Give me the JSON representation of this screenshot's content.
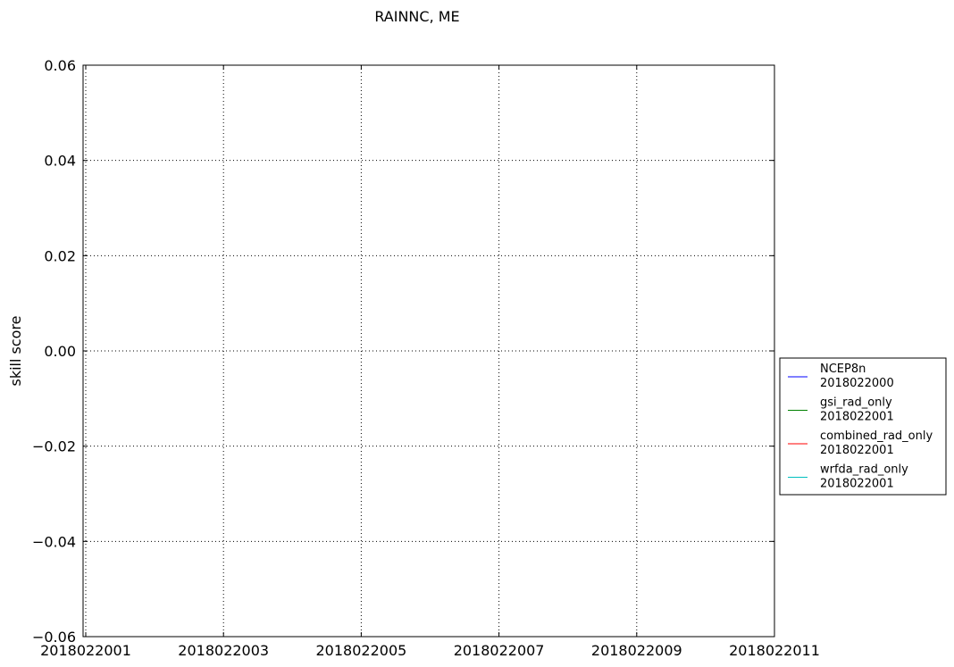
{
  "chart_data": {
    "type": "line",
    "title": "RAINNC, ME",
    "xlabel": "",
    "ylabel": "skill score",
    "x_tick_labels": [
      "2018022001",
      "2018022003",
      "2018022005",
      "2018022007",
      "2018022009",
      "2018022011"
    ],
    "x_ticks": [
      2018022001,
      2018022003,
      2018022005,
      2018022007,
      2018022009,
      2018022011
    ],
    "xlim": [
      2018022001,
      2018022011
    ],
    "y_tick_labels": [
      "0.06",
      "0.04",
      "0.02",
      "0.00",
      "−0.02",
      "−0.04",
      "−0.06"
    ],
    "y_ticks": [
      0.06,
      0.04,
      0.02,
      0.0,
      -0.02,
      -0.04,
      -0.06
    ],
    "ylim": [
      -0.06,
      0.06
    ],
    "grid": true,
    "legend_position": "outside-right",
    "series": [
      {
        "name": "NCEP8n",
        "date": "2018022000",
        "color": "#0000ff",
        "values": []
      },
      {
        "name": "gsi_rad_only",
        "date": "2018022001",
        "color": "#008000",
        "values": []
      },
      {
        "name": "combined_rad_only",
        "date": "2018022001",
        "color": "#ff0000",
        "values": []
      },
      {
        "name": "wrfda_rad_only",
        "date": "2018022001",
        "color": "#00bfbf",
        "values": []
      }
    ]
  }
}
